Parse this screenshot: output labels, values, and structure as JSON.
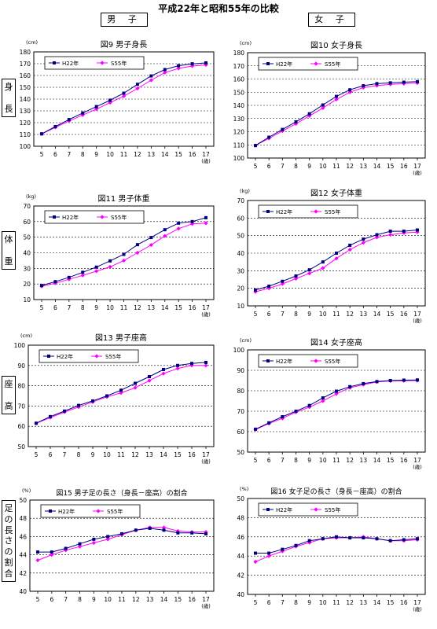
{
  "page": {
    "title": "平成22年と昭和55年の比較",
    "col_headers": [
      "男 子",
      "女 子"
    ],
    "row_labels": [
      "身 長",
      "体 重",
      "座 高",
      "足の長さの割合"
    ]
  },
  "colors": {
    "h22": "#000080",
    "s55": "#ff00ff"
  },
  "chart_data": [
    {
      "type": "line",
      "title": "図9 男子身長",
      "unit": "(cm)",
      "xunit": "(歳)",
      "x": [
        5,
        6,
        7,
        8,
        9,
        10,
        11,
        12,
        13,
        14,
        15,
        16,
        17
      ],
      "ylim": [
        100,
        180
      ],
      "ystep": 10,
      "series": [
        {
          "name": "H22年",
          "values": [
            110.5,
            116.7,
            122.6,
            128.2,
            133.6,
            139.0,
            145.0,
            152.5,
            159.6,
            165.0,
            168.3,
            169.9,
            170.7
          ]
        },
        {
          "name": "S55年",
          "values": [
            110.5,
            116.0,
            121.5,
            126.5,
            131.5,
            137.0,
            142.5,
            149.0,
            156.0,
            162.5,
            166.0,
            168.0,
            169.0
          ]
        }
      ]
    },
    {
      "type": "line",
      "title": "図10 女子身長",
      "unit": "(cm)",
      "xunit": "(歳)",
      "x": [
        5,
        6,
        7,
        8,
        9,
        10,
        11,
        12,
        13,
        14,
        15,
        16,
        17
      ],
      "ylim": [
        100,
        180
      ],
      "ystep": 10,
      "series": [
        {
          "name": "H22年",
          "values": [
            109.5,
            115.8,
            121.7,
            127.5,
            133.6,
            140.3,
            146.8,
            151.8,
            154.9,
            156.5,
            157.1,
            157.6,
            158.0
          ]
        },
        {
          "name": "S55年",
          "values": [
            109.5,
            115.0,
            120.5,
            126.0,
            132.0,
            138.0,
            144.5,
            150.0,
            153.5,
            155.0,
            156.0,
            156.5,
            157.0
          ]
        }
      ]
    },
    {
      "type": "line",
      "title": "図11 男子体重",
      "unit": "(kg)",
      "xunit": "(歳)",
      "x": [
        5,
        6,
        7,
        8,
        9,
        10,
        11,
        12,
        13,
        14,
        15,
        16,
        17
      ],
      "ylim": [
        10,
        70
      ],
      "ystep": 10,
      "series": [
        {
          "name": "H22年",
          "values": [
            19.0,
            21.5,
            24.2,
            27.5,
            30.8,
            34.8,
            39.0,
            45.2,
            49.8,
            54.8,
            59.0,
            60.0,
            62.5
          ]
        },
        {
          "name": "S55年",
          "values": [
            18.5,
            20.5,
            23.0,
            25.5,
            28.2,
            31.0,
            35.0,
            40.0,
            45.0,
            50.8,
            55.5,
            58.5,
            59.0
          ]
        }
      ]
    },
    {
      "type": "line",
      "title": "図12 女子体重",
      "unit": "(kg)",
      "xunit": "(歳)",
      "x": [
        5,
        6,
        7,
        8,
        9,
        10,
        11,
        12,
        13,
        14,
        15,
        16,
        17
      ],
      "ylim": [
        10,
        70
      ],
      "ystep": 10,
      "series": [
        {
          "name": "H22年",
          "values": [
            19.0,
            21.2,
            24.0,
            27.0,
            30.5,
            35.0,
            40.0,
            44.5,
            48.0,
            50.5,
            52.5,
            52.5,
            53.2
          ]
        },
        {
          "name": "S55年",
          "values": [
            18.0,
            20.0,
            22.5,
            25.5,
            28.5,
            31.5,
            37.0,
            42.0,
            46.0,
            49.0,
            50.5,
            51.5,
            52.0
          ]
        }
      ]
    },
    {
      "type": "line",
      "title": "図13 男子座高",
      "unit": "(cm)",
      "xunit": "(歳)",
      "x": [
        5,
        6,
        7,
        8,
        9,
        10,
        11,
        12,
        13,
        14,
        15,
        16,
        17
      ],
      "ylim": [
        50,
        100
      ],
      "ystep": 10,
      "series": [
        {
          "name": "H22年",
          "values": [
            61.5,
            64.8,
            67.5,
            70.3,
            72.5,
            75.0,
            77.8,
            81.2,
            84.5,
            88.0,
            90.0,
            91.0,
            91.5
          ]
        },
        {
          "name": "S55年",
          "values": [
            61.5,
            64.3,
            67.0,
            69.5,
            72.0,
            74.5,
            76.5,
            79.0,
            82.5,
            86.0,
            88.5,
            90.0,
            90.0
          ]
        }
      ]
    },
    {
      "type": "line",
      "title": "図14 女子座高",
      "unit": "(cm)",
      "xunit": "(歳)",
      "x": [
        5,
        6,
        7,
        8,
        9,
        10,
        11,
        12,
        13,
        14,
        15,
        16,
        17
      ],
      "ylim": [
        50,
        100
      ],
      "ystep": 10,
      "series": [
        {
          "name": "H22年",
          "values": [
            61.2,
            64.3,
            67.3,
            70.0,
            72.8,
            76.5,
            79.8,
            82.0,
            83.5,
            84.5,
            85.0,
            85.2,
            85.3
          ]
        },
        {
          "name": "S55年",
          "values": [
            61.0,
            64.0,
            66.5,
            69.5,
            72.0,
            75.0,
            78.5,
            81.5,
            83.0,
            84.3,
            84.8,
            84.9,
            85.0
          ]
        }
      ]
    },
    {
      "type": "line",
      "title": "図15 男子足の長さ（身長－座高）の割合",
      "unit": "(%)",
      "xunit": "(歳)",
      "x": [
        5,
        6,
        7,
        8,
        9,
        10,
        11,
        12,
        13,
        14,
        15,
        16,
        17
      ],
      "ylim": [
        40,
        50
      ],
      "ystep": 2,
      "series": [
        {
          "name": "H22年",
          "values": [
            44.3,
            44.3,
            44.7,
            45.2,
            45.7,
            46.0,
            46.3,
            46.7,
            46.9,
            46.7,
            46.4,
            46.4,
            46.3
          ]
        },
        {
          "name": "S55年",
          "values": [
            43.4,
            44.0,
            44.5,
            44.9,
            45.3,
            45.7,
            46.2,
            46.7,
            47.0,
            47.0,
            46.6,
            46.5,
            46.5
          ]
        }
      ]
    },
    {
      "type": "line",
      "title": "図16 女子足の長さ（身長－座高）の割合",
      "unit": "(%)",
      "xunit": "(歳)",
      "x": [
        5,
        6,
        7,
        8,
        9,
        10,
        11,
        12,
        13,
        14,
        15,
        16,
        17
      ],
      "ylim": [
        40,
        50
      ],
      "ystep": 2,
      "series": [
        {
          "name": "H22年",
          "values": [
            44.3,
            44.3,
            44.7,
            45.1,
            45.6,
            45.8,
            46.0,
            45.9,
            45.9,
            45.8,
            45.6,
            45.7,
            45.8
          ]
        },
        {
          "name": "S55年",
          "values": [
            43.4,
            44.0,
            44.5,
            45.0,
            45.4,
            45.8,
            45.9,
            45.9,
            46.0,
            45.8,
            45.6,
            45.6,
            45.7
          ]
        }
      ]
    }
  ]
}
